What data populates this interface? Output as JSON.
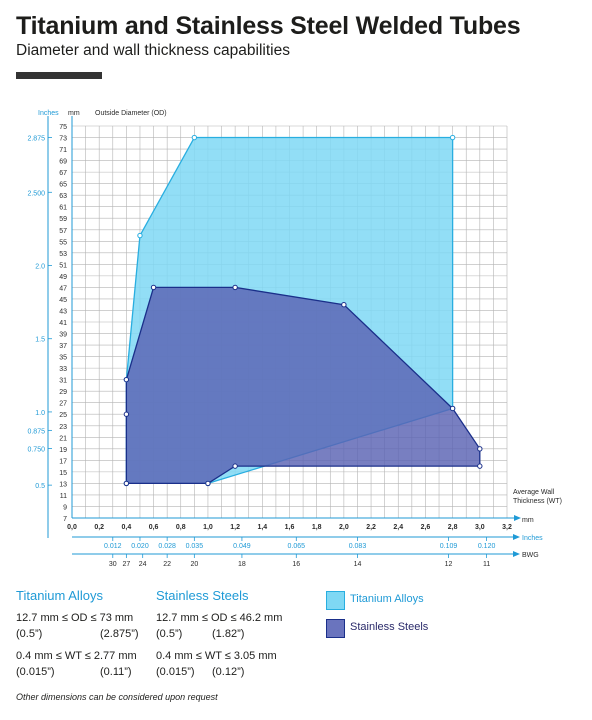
{
  "header": {
    "title": "Titanium and Stainless Steel Welded Tubes",
    "subtitle": "Diameter and wall thickness capabilities"
  },
  "chart_data": {
    "type": "area",
    "title": "",
    "y_label_inch": "Inches",
    "y_label_mm": "mm",
    "ylabel": "Outside Diameter (OD)",
    "xlabel_line1": "Average Wall",
    "xlabel_line2": "Thickness (WT)",
    "x_unit_mm": "mm",
    "x_unit_inch": "Inches",
    "bwg_label": "BWG",
    "xlim": [
      0,
      3.2
    ],
    "ylim": [
      7,
      75
    ],
    "grid": true,
    "x_ticks_mm": [
      "0,0",
      "0,2",
      "0,4",
      "0,6",
      "0,8",
      "1,0",
      "1,2",
      "1,4",
      "1,6",
      "1,8",
      "2,0",
      "2,2",
      "2,4",
      "2,6",
      "2,8",
      "3,0",
      "3,2"
    ],
    "y_ticks_mm": [
      "7",
      "9",
      "11",
      "13",
      "15",
      "17",
      "19",
      "21",
      "23",
      "25",
      "27",
      "29",
      "31",
      "33",
      "35",
      "37",
      "39",
      "41",
      "43",
      "45",
      "47",
      "49",
      "51",
      "53",
      "55",
      "57",
      "59",
      "61",
      "63",
      "65",
      "67",
      "69",
      "71",
      "73",
      "75"
    ],
    "y_ticks_inch": [
      {
        "mm": 12.7,
        "label": "0.5"
      },
      {
        "mm": 19.05,
        "label": "0.750"
      },
      {
        "mm": 22.2,
        "label": "0.875"
      },
      {
        "mm": 25.4,
        "label": "1.0"
      },
      {
        "mm": 38.1,
        "label": "1.5"
      },
      {
        "mm": 50.8,
        "label": "2.0"
      },
      {
        "mm": 63.5,
        "label": "2.500"
      },
      {
        "mm": 73.0,
        "label": "2.875"
      }
    ],
    "x_ticks_inch": [
      {
        "mm": 0.3,
        "label": "0.012"
      },
      {
        "mm": 0.5,
        "label": "0.020"
      },
      {
        "mm": 0.7,
        "label": "0.028"
      },
      {
        "mm": 0.9,
        "label": "0.035"
      },
      {
        "mm": 1.25,
        "label": "0.049"
      },
      {
        "mm": 1.65,
        "label": "0.065"
      },
      {
        "mm": 2.1,
        "label": "0.083"
      },
      {
        "mm": 2.77,
        "label": "0.109"
      },
      {
        "mm": 3.05,
        "label": "0.120"
      }
    ],
    "bwg_ticks": [
      {
        "mm": 0.3,
        "label": "30"
      },
      {
        "mm": 0.4,
        "label": "27"
      },
      {
        "mm": 0.52,
        "label": "24"
      },
      {
        "mm": 0.7,
        "label": "22"
      },
      {
        "mm": 0.9,
        "label": "20"
      },
      {
        "mm": 1.25,
        "label": "18"
      },
      {
        "mm": 1.65,
        "label": "16"
      },
      {
        "mm": 2.1,
        "label": "14"
      },
      {
        "mm": 2.77,
        "label": "12"
      },
      {
        "mm": 3.05,
        "label": "11"
      }
    ],
    "series": [
      {
        "name": "Titanium Alloys",
        "color": "#7fd8f4",
        "stroke": "#29aee0",
        "x": [
          0.4,
          0.5,
          0.9,
          2.8,
          2.8,
          1.0,
          0.4
        ],
        "y": [
          31,
          56,
          73,
          73,
          26,
          13,
          13
        ]
      },
      {
        "name": "Stainless Steels",
        "color": "#5a63b3",
        "stroke": "#1a2f8a",
        "x": [
          0.4,
          0.6,
          1.2,
          2.0,
          2.8,
          3.0,
          3.0,
          1.2,
          1.0,
          0.4,
          0.4
        ],
        "y": [
          31,
          47,
          47,
          44,
          26,
          19,
          16,
          16,
          13,
          13,
          25
        ]
      }
    ]
  },
  "specs": {
    "titanium": {
      "heading": "Titanium Alloys",
      "od_range": "12.7 mm ≤ OD ≤ 73 mm",
      "od_min_inch": "(0.5”)",
      "od_max_inch": "(2.875”)",
      "wt_range": "0.4 mm ≤ WT ≤ 2.77 mm",
      "wt_min_inch": "(0.015”)",
      "wt_max_inch": "(0.11”)"
    },
    "stainless": {
      "heading": "Stainless Steels",
      "od_range": "12.7 mm ≤ OD ≤ 46.2 mm",
      "od_min_inch": "(0.5”)",
      "od_max_inch": "(1.82”)",
      "wt_range": "0.4 mm ≤ WT ≤ 3.05 mm",
      "wt_min_inch": "(0.015”)",
      "wt_max_inch": "(0.12”)"
    }
  },
  "legend": {
    "titanium": "Titanium Alloys",
    "stainless": "Stainless Steels"
  },
  "footnote": "Other dimensions can be considered upon request"
}
